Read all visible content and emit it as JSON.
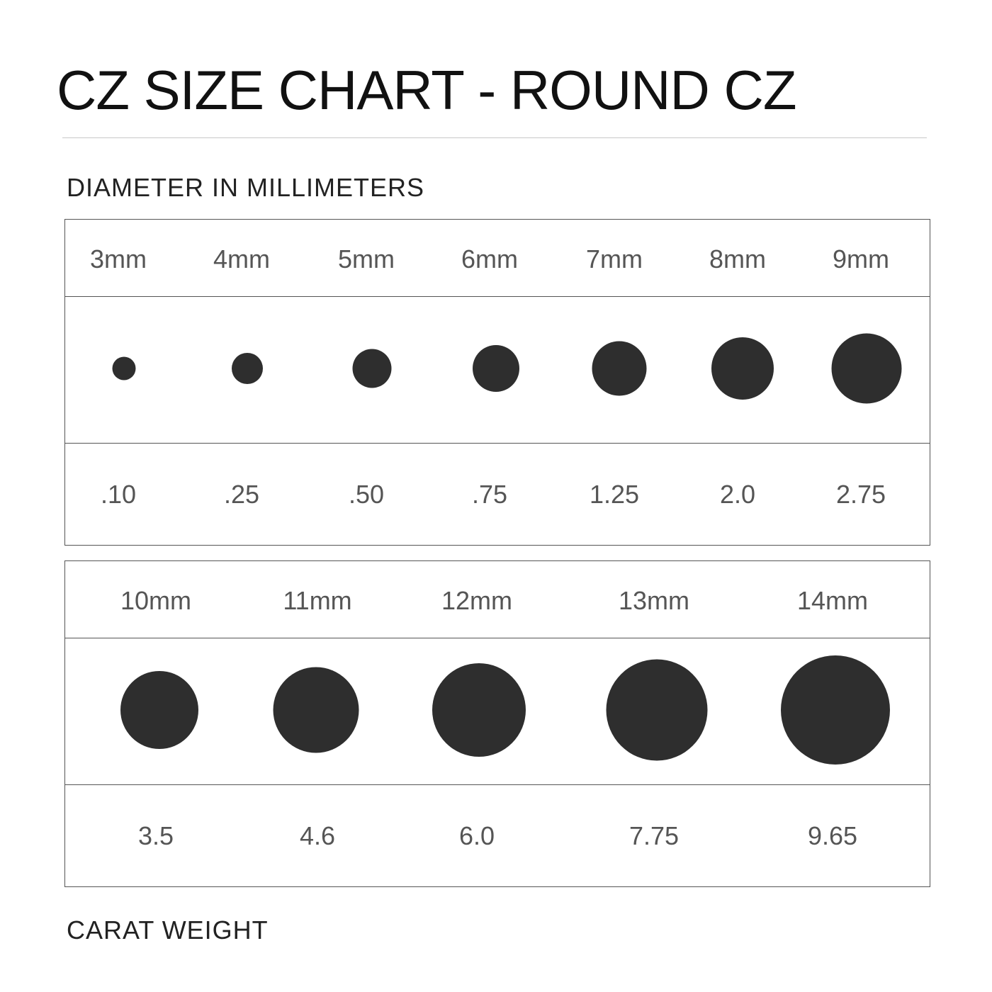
{
  "title": "CZ SIZE CHART - ROUND CZ",
  "subtitle": "DIAMETER IN MILLIMETERS",
  "footer_label": "CARAT WEIGHT",
  "colors": {
    "stone": "#2e2e2e",
    "border": "#555555",
    "text": "#555555"
  },
  "chart_data": {
    "type": "table",
    "title": "CZ SIZE CHART - ROUND CZ",
    "rows": [
      {
        "sizes": [
          "3mm",
          "4mm",
          "5mm",
          "6mm",
          "7mm",
          "8mm",
          "9mm"
        ],
        "diameters_mm": [
          3,
          4,
          5,
          6,
          7,
          8,
          9
        ],
        "carats": [
          ".10",
          ".25",
          ".50",
          ".75",
          "1.25",
          "2.0",
          "2.75"
        ]
      },
      {
        "sizes": [
          "10mm",
          "11mm",
          "12mm",
          "13mm",
          "14mm"
        ],
        "diameters_mm": [
          10,
          11,
          12,
          13,
          14
        ],
        "carats": [
          "3.5",
          "4.6",
          "6.0",
          "7.75",
          "9.65"
        ]
      }
    ]
  }
}
